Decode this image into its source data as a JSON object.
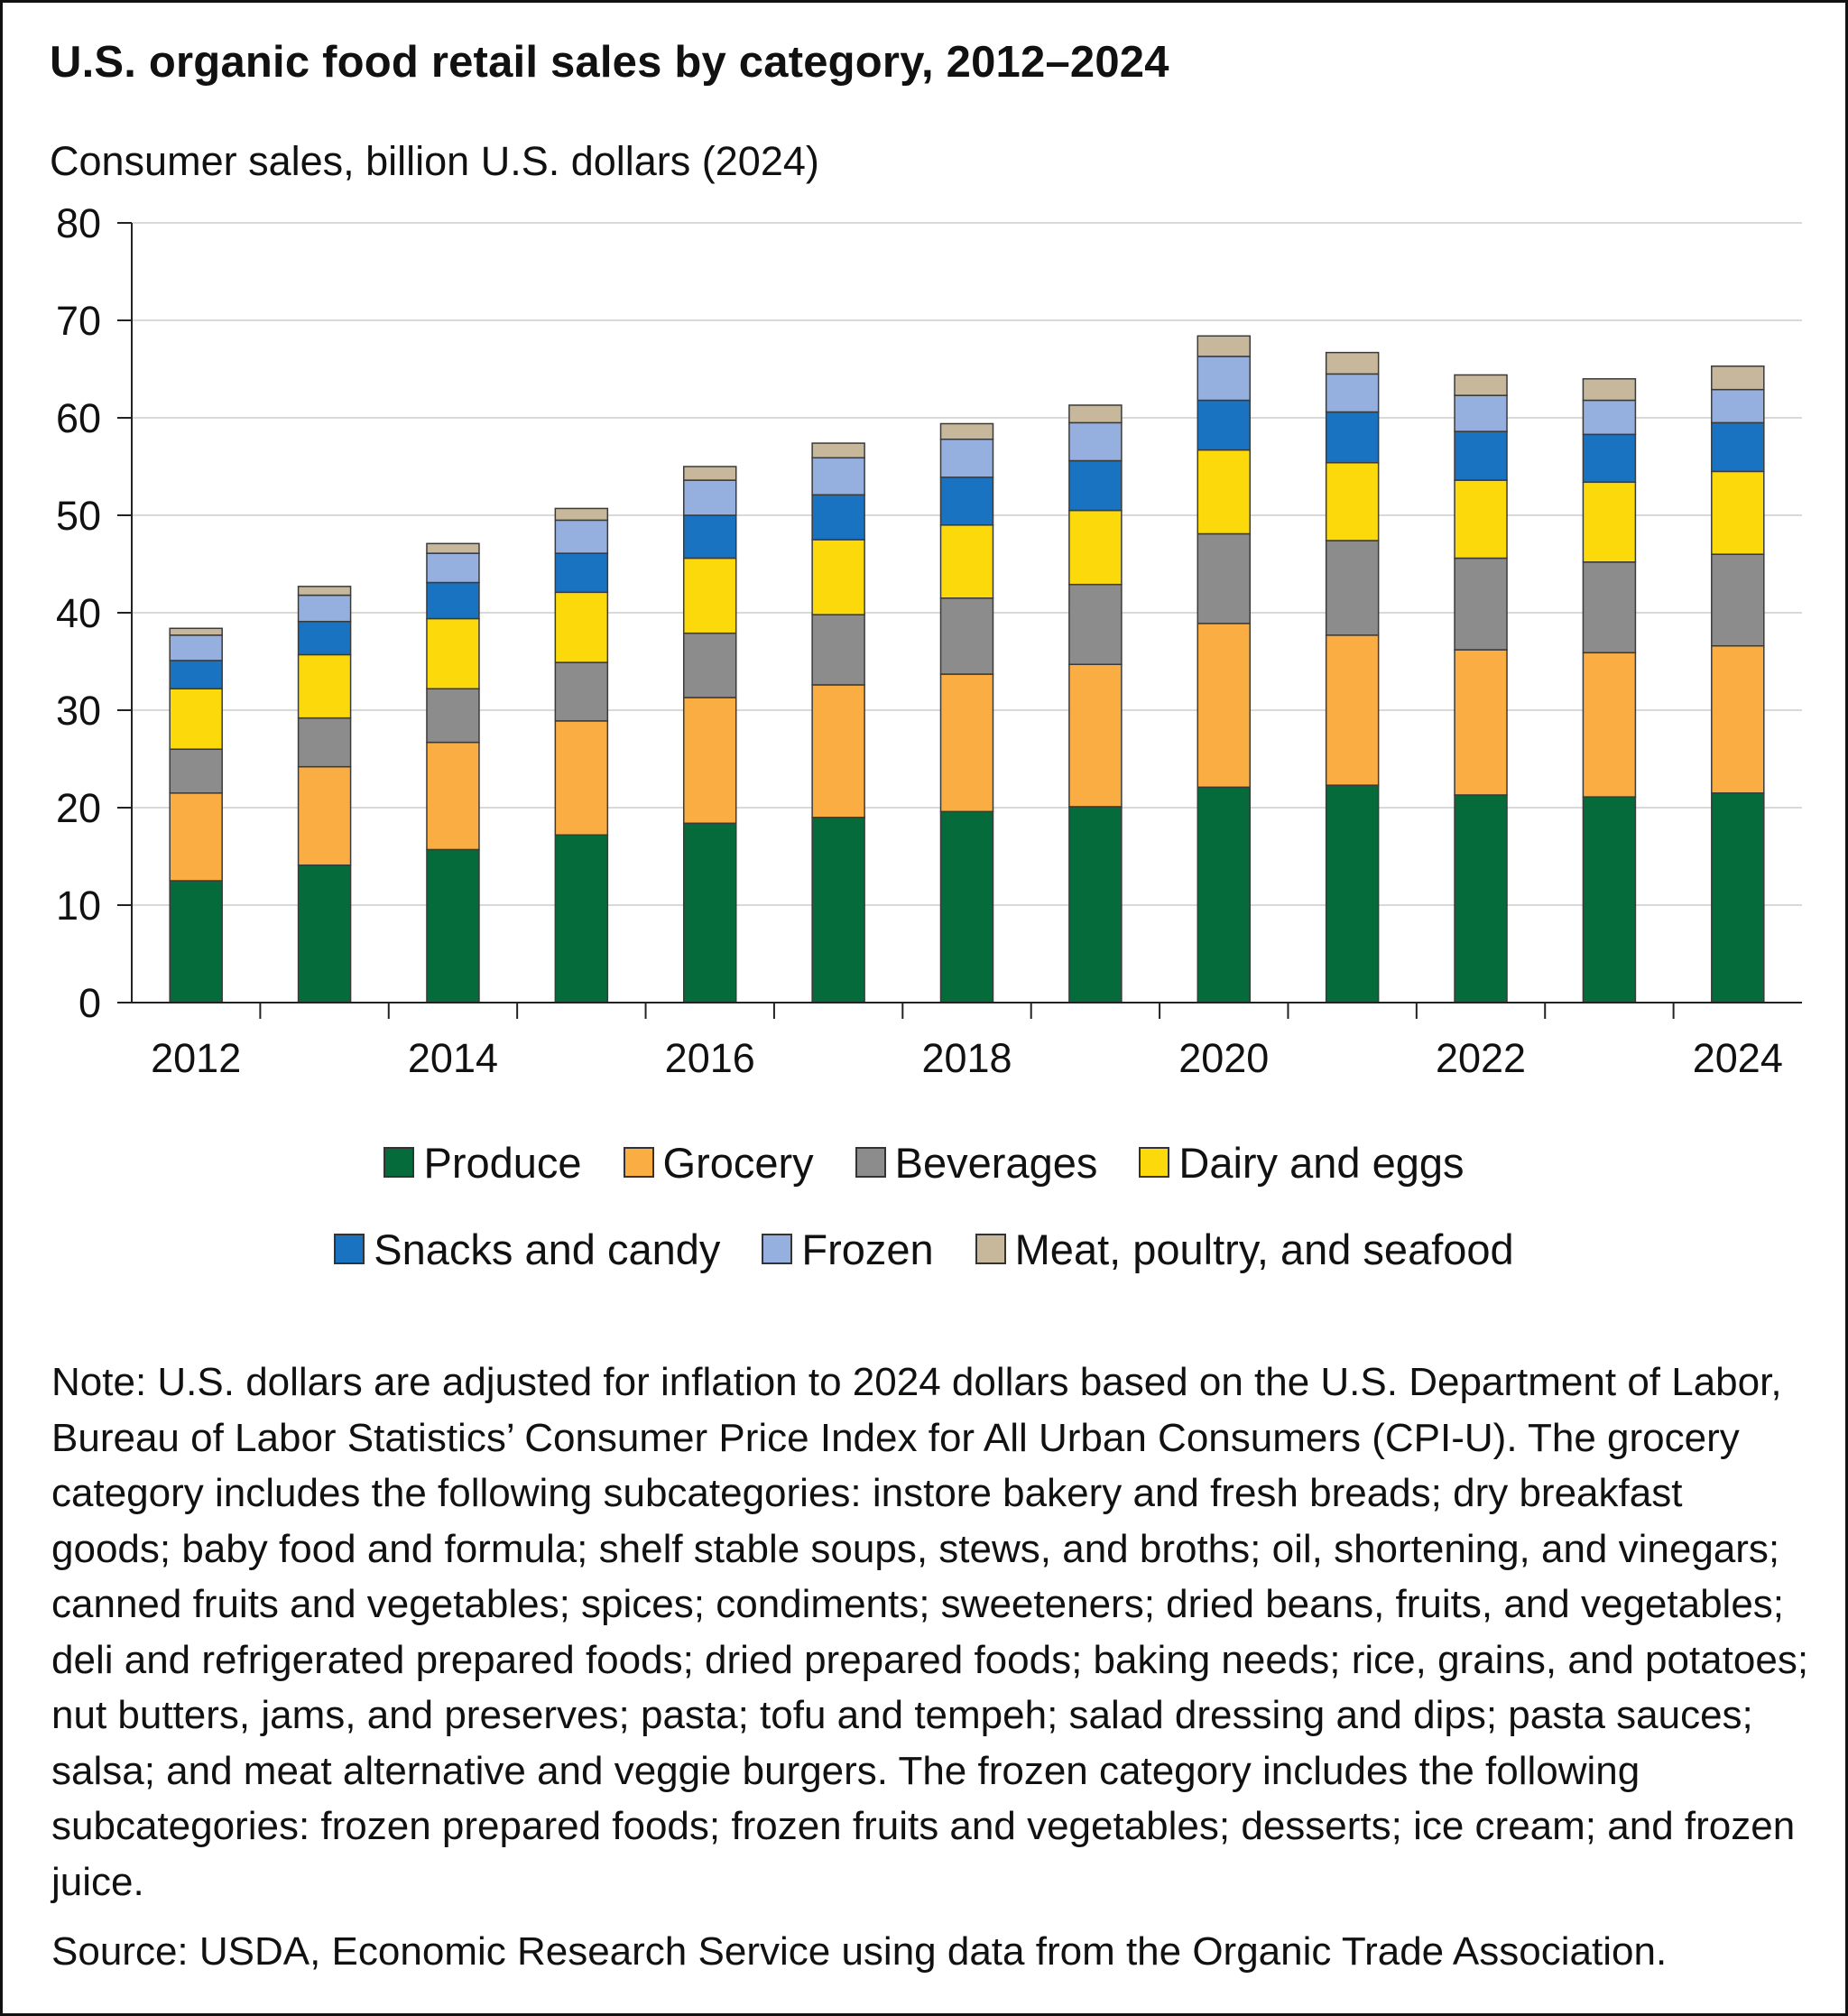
{
  "title": "U.S. organic food retail sales by category, 2012–2024",
  "note": "Note: U.S. dollars are adjusted for inflation to 2024 dollars based on the U.S. Department of Labor, Bureau of Labor Statistics’ Consumer Price Index for All Urban Consumers (CPI-U). The grocery category includes the following subcategories: instore bakery and fresh breads; dry breakfast goods; baby food and formula; shelf stable soups, stews, and broths; oil, shortening, and vinegars; canned fruits and vegetables; spices; condiments; sweeteners; dried beans, fruits, and vegetables; deli and refrigerated prepared foods; dried prepared foods; baking needs; rice, grains, and potatoes; nut butters, jams, and preserves; pasta; tofu and tempeh; salad dressing and dips; pasta sauces; salsa; and meat alternative and veggie burgers. The frozen category includes the following subcategories: frozen prepared foods; frozen fruits and vegetables; desserts; ice cream; and frozen juice.",
  "source": "Source: USDA, Economic Research Service using data from the Organic Trade Association.",
  "chart_data": {
    "type": "bar",
    "stacked": true,
    "title": "U.S. organic food retail sales by category, 2012–2024",
    "ylabel": "Consumer sales, billion U.S. dollars (2024)",
    "xlabel": "",
    "ylim": [
      0,
      80
    ],
    "yticks": [
      0,
      10,
      20,
      30,
      40,
      50,
      60,
      70,
      80
    ],
    "grid": true,
    "legend_position": "bottom",
    "categories": [
      "2012",
      "2013",
      "2014",
      "2015",
      "2016",
      "2017",
      "2018",
      "2019",
      "2020",
      "2021",
      "2022",
      "2023",
      "2024"
    ],
    "xtick_labels": [
      "2012",
      "",
      "2014",
      "",
      "2016",
      "",
      "2018",
      "",
      "2020",
      "",
      "2022",
      "",
      "2024"
    ],
    "series": [
      {
        "name": "Produce",
        "color": "#066b3b",
        "values": [
          12.5,
          14.1,
          15.7,
          17.2,
          18.4,
          19.0,
          19.6,
          20.1,
          22.1,
          22.3,
          21.3,
          21.1,
          21.5
        ]
      },
      {
        "name": "Grocery",
        "color": "#f9ad43",
        "values": [
          9.0,
          10.1,
          11.0,
          11.7,
          12.9,
          13.6,
          14.1,
          14.6,
          16.8,
          15.4,
          14.9,
          14.8,
          15.1
        ]
      },
      {
        "name": "Beverages",
        "color": "#8c8c8c",
        "values": [
          4.5,
          5.0,
          5.5,
          6.0,
          6.6,
          7.2,
          7.8,
          8.2,
          9.2,
          9.7,
          9.4,
          9.3,
          9.4
        ]
      },
      {
        "name": "Dairy and eggs",
        "color": "#fbd90a",
        "values": [
          6.2,
          6.5,
          7.2,
          7.2,
          7.7,
          7.7,
          7.5,
          7.6,
          8.6,
          8.0,
          8.0,
          8.2,
          8.5
        ]
      },
      {
        "name": "Snacks and candy",
        "color": "#1a73c1",
        "values": [
          2.9,
          3.4,
          3.7,
          4.0,
          4.4,
          4.6,
          4.9,
          5.1,
          5.1,
          5.2,
          5.0,
          4.9,
          5.0
        ]
      },
      {
        "name": "Frozen",
        "color": "#95b0df",
        "values": [
          2.6,
          2.7,
          3.0,
          3.4,
          3.6,
          3.8,
          3.9,
          3.9,
          4.5,
          3.9,
          3.7,
          3.5,
          3.4
        ]
      },
      {
        "name": "Meat, poultry, and seafood",
        "color": "#c7b89c",
        "values": [
          0.7,
          0.9,
          1.0,
          1.2,
          1.4,
          1.5,
          1.6,
          1.8,
          2.1,
          2.2,
          2.1,
          2.2,
          2.4
        ]
      }
    ]
  }
}
